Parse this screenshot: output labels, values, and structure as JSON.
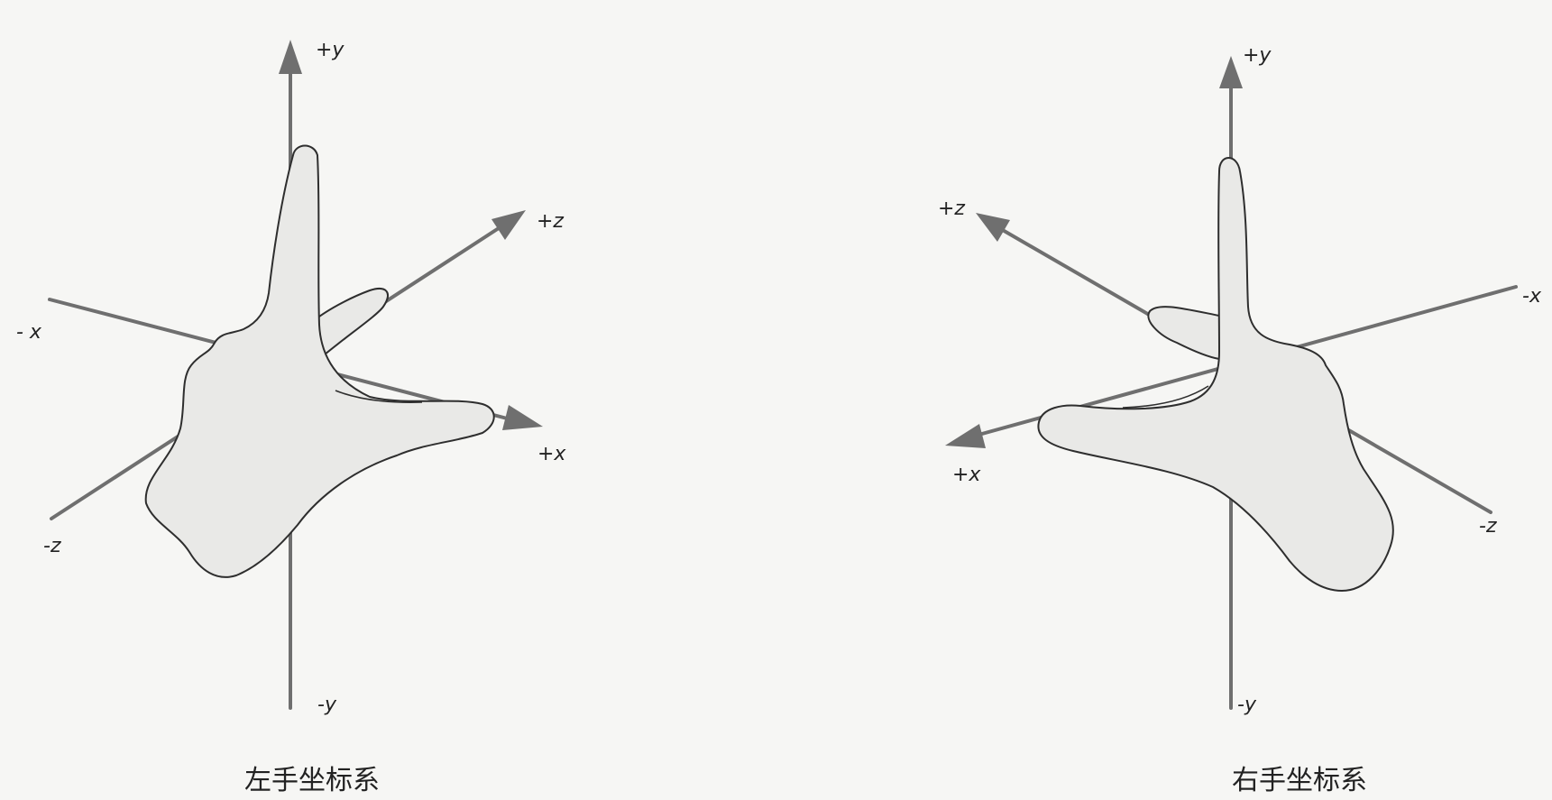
{
  "left_diagram": {
    "labels": {
      "pos_y": "+y",
      "neg_y": "-y",
      "pos_x": "+x",
      "neg_x": "- x",
      "pos_z": "+z",
      "neg_z": "-z"
    },
    "caption": "左手坐标系"
  },
  "right_diagram": {
    "labels": {
      "pos_y": "+y",
      "neg_y": "-y",
      "pos_x": "+x",
      "neg_x": "-x",
      "pos_z": "+z",
      "neg_z": "-z"
    },
    "caption": "右手坐标系"
  },
  "colors": {
    "axis": "#6f6f6f",
    "hand_fill": "#e9e9e7",
    "outline": "#2e2e2e",
    "background": "#f6f6f4"
  }
}
